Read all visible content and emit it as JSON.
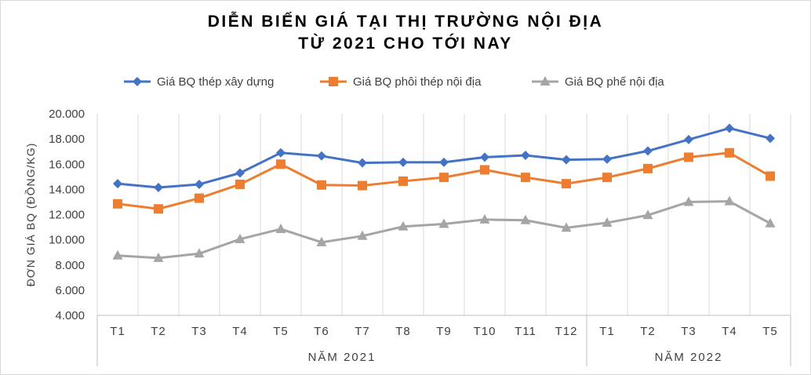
{
  "chart_data": {
    "type": "line",
    "title": [
      "DIỄN BIẾN GIÁ TẠI THỊ TRƯỜNG NỘI ĐỊA",
      "TỪ 2021 CHO TỚI NAY"
    ],
    "ylabel": "ĐƠN GIÁ BQ (ĐỒNG/KG)",
    "xlabel": "",
    "ylim": [
      4000,
      20000
    ],
    "yticks": [
      "4.000",
      "6.000",
      "8.000",
      "10.000",
      "12.000",
      "14.000",
      "16.000",
      "18.000",
      "20.000"
    ],
    "ytick_values": [
      4000,
      6000,
      8000,
      10000,
      12000,
      14000,
      16000,
      18000,
      20000
    ],
    "grid": "vertical",
    "legend_position": "top",
    "categories": [
      "T1",
      "T2",
      "T3",
      "T4",
      "T5",
      "T6",
      "T7",
      "T8",
      "T9",
      "T10",
      "T11",
      "T12",
      "T1",
      "T2",
      "T3",
      "T4",
      "T5"
    ],
    "groups": [
      {
        "label": "NĂM 2021",
        "count": 12
      },
      {
        "label": "NĂM 2022",
        "count": 5
      }
    ],
    "series": [
      {
        "name": "Giá BQ thép xây dựng",
        "color": "#4472c4",
        "marker": "diamond",
        "values": [
          14450,
          14150,
          14400,
          15300,
          16900,
          16650,
          16100,
          16150,
          16150,
          16550,
          16700,
          16350,
          16400,
          17050,
          17950,
          18850,
          18050
        ]
      },
      {
        "name": "Giá BQ phôi thép nội địa",
        "color": "#ed7d31",
        "marker": "square",
        "values": [
          12850,
          12450,
          13300,
          14400,
          16000,
          14350,
          14300,
          14650,
          14950,
          15550,
          14950,
          14450,
          14950,
          15650,
          16550,
          16900,
          15050
        ]
      },
      {
        "name": "Giá BQ phế nội địa",
        "color": "#a5a5a5",
        "marker": "triangle",
        "values": [
          8750,
          8550,
          8900,
          10050,
          10850,
          9800,
          10300,
          11050,
          11250,
          11600,
          11550,
          10950,
          11350,
          11950,
          13000,
          13050,
          11300
        ]
      }
    ]
  }
}
